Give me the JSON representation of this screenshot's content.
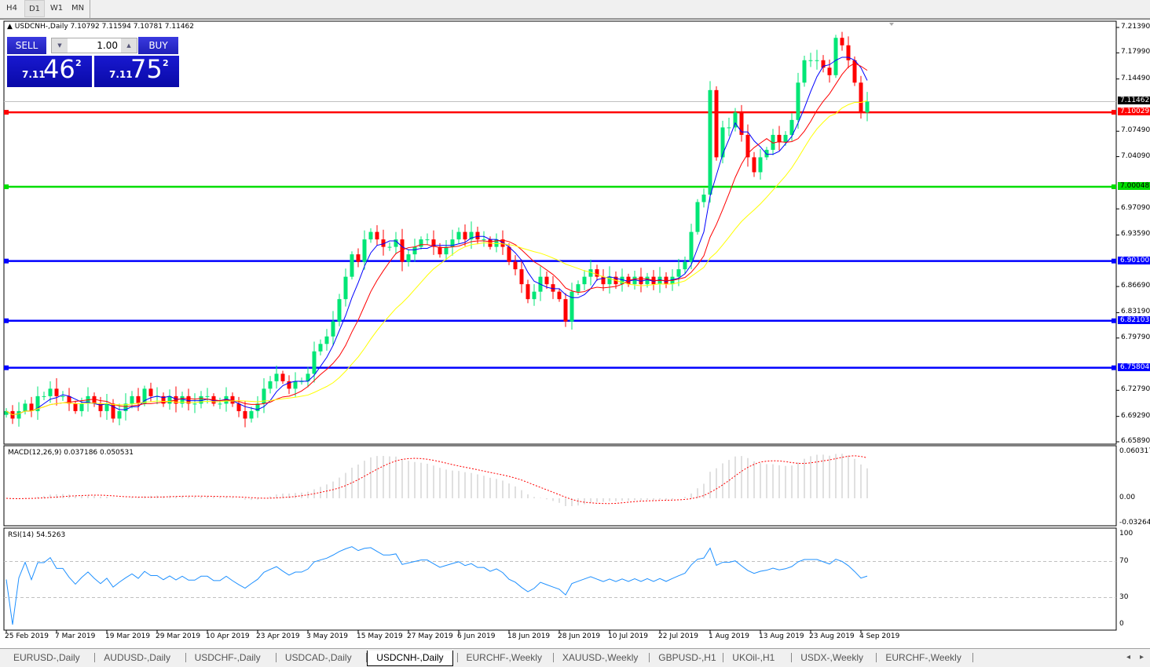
{
  "toolbar": {
    "timeframes": [
      "H4",
      "D1",
      "W1",
      "MN"
    ],
    "active": "D1"
  },
  "chart": {
    "header": "USDCNH-,Daily  7.10792 7.11594 7.10781 7.11462",
    "trade_panel": {
      "sell_label": "SELL",
      "buy_label": "BUY",
      "lot": "1.00",
      "sell_prefix": "7.11",
      "sell_big": "46",
      "sell_sup": "2",
      "buy_prefix": "7.11",
      "buy_big": "75",
      "buy_sup": "2"
    },
    "price_axis": [
      "7.21390",
      "7.17990",
      "7.14490",
      "7.07490",
      "7.04090",
      "6.97090",
      "6.93590",
      "6.86690",
      "6.83190",
      "6.79790",
      "6.72790",
      "6.69290",
      "6.65890"
    ],
    "current_price": "7.11462",
    "levels": [
      {
        "price": "7.10029",
        "color": "#ff0000"
      },
      {
        "price": "7.00048",
        "color": "#00dd00"
      },
      {
        "price": "6.90100",
        "color": "#0000ff"
      },
      {
        "price": "6.82103",
        "color": "#0000ff"
      },
      {
        "price": "6.75804",
        "color": "#0000ff"
      }
    ],
    "colors": {
      "bull": "#00e676",
      "bear": "#ff0000",
      "ma_fast": "#0000ff",
      "ma_mid": "#ff0000",
      "ma_slow": "#ffff00"
    },
    "date_axis": [
      "25 Feb 2019",
      "7 Mar 2019",
      "19 Mar 2019",
      "29 Mar 2019",
      "10 Apr 2019",
      "23 Apr 2019",
      "3 May 2019",
      "15 May 2019",
      "27 May 2019",
      "6 Jun 2019",
      "18 Jun 2019",
      "28 Jun 2019",
      "10 Jul 2019",
      "22 Jul 2019",
      "1 Aug 2019",
      "13 Aug 2019",
      "23 Aug 2019",
      "4 Sep 2019"
    ]
  },
  "macd": {
    "label": "MACD(12,26,9) 0.037186 0.050531",
    "axis": [
      "0.060317",
      "0.00",
      "-0.032648"
    ]
  },
  "rsi": {
    "label": "RSI(14) 54.5263",
    "axis": [
      "100",
      "70",
      "30",
      "0"
    ]
  },
  "tabs": [
    "EURUSD-,Daily",
    "AUDUSD-,Daily",
    "USDCHF-,Daily",
    "USDCAD-,Daily",
    "USDCNH-,Daily",
    "EURCHF-,Weekly",
    "XAUUSD-,Weekly",
    "GBPUSD-,H1",
    "UKOil-,H1",
    "USDX-,Weekly",
    "EURCHF-,Weekly"
  ],
  "active_tab": "USDCNH-,Daily",
  "chart_data": {
    "type": "candlestick",
    "symbol": "USDCNH-",
    "timeframe": "Daily",
    "ylim": [
      6.6589,
      7.2139
    ],
    "closes": [
      6.7,
      6.69,
      6.7,
      6.71,
      6.7,
      6.72,
      6.72,
      6.73,
      6.72,
      6.72,
      6.71,
      6.7,
      6.71,
      6.72,
      6.71,
      6.7,
      6.71,
      6.69,
      6.7,
      6.71,
      6.72,
      6.71,
      6.73,
      6.72,
      6.72,
      6.71,
      6.72,
      6.71,
      6.72,
      6.71,
      6.71,
      6.72,
      6.72,
      6.71,
      6.71,
      6.72,
      6.71,
      6.7,
      6.69,
      6.7,
      6.71,
      6.73,
      6.74,
      6.75,
      6.74,
      6.73,
      6.74,
      6.74,
      6.75,
      6.78,
      6.79,
      6.8,
      6.82,
      6.85,
      6.88,
      6.91,
      6.9,
      6.93,
      6.94,
      6.93,
      6.92,
      6.92,
      6.93,
      6.9,
      6.91,
      6.92,
      6.93,
      6.93,
      6.92,
      6.91,
      6.92,
      6.93,
      6.94,
      6.93,
      6.94,
      6.93,
      6.93,
      6.92,
      6.93,
      6.92,
      6.9,
      6.89,
      6.87,
      6.85,
      6.86,
      6.88,
      6.87,
      6.86,
      6.85,
      6.82,
      6.86,
      6.87,
      6.88,
      6.89,
      6.88,
      6.87,
      6.88,
      6.87,
      6.88,
      6.87,
      6.88,
      6.87,
      6.88,
      6.87,
      6.88,
      6.87,
      6.88,
      6.89,
      6.9,
      6.94,
      6.98,
      6.99,
      7.13,
      7.04,
      7.08,
      7.08,
      7.1,
      7.07,
      7.04,
      7.02,
      7.04,
      7.05,
      7.07,
      7.06,
      7.07,
      7.09,
      7.14,
      7.17,
      7.17,
      7.17,
      7.16,
      7.15,
      7.2,
      7.19,
      7.17,
      7.14,
      7.1,
      7.11462
    ]
  }
}
